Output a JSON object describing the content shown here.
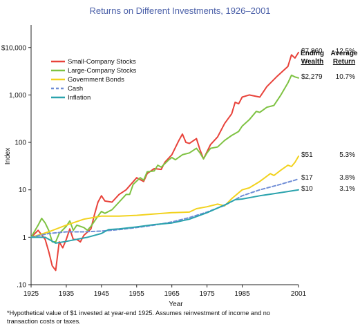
{
  "chart_data": {
    "type": "line",
    "title": "Returns on Different Investments, 1926–2001",
    "xlabel": "Year",
    "ylabel": "Index",
    "y_scale": "log",
    "ylim": [
      0.1,
      30000
    ],
    "xlim": [
      1925,
      2001
    ],
    "x_ticks": [
      "1925",
      "1935",
      "1945",
      "1955",
      "1965",
      "1975",
      "1985",
      "2001"
    ],
    "y_ticks": [
      ".10",
      "1",
      "10",
      "100",
      "1,000",
      "$10,000"
    ],
    "legend_position": "top-left",
    "series": [
      {
        "name": "Small-Company Stocks",
        "color": "#e8423a",
        "dash": "solid",
        "points": [
          [
            1925,
            1.0
          ],
          [
            1927,
            1.4
          ],
          [
            1929,
            0.9
          ],
          [
            1930,
            0.5
          ],
          [
            1931,
            0.25
          ],
          [
            1932,
            0.2
          ],
          [
            1933,
            0.8
          ],
          [
            1934,
            0.6
          ],
          [
            1935,
            0.9
          ],
          [
            1936,
            1.5
          ],
          [
            1937,
            0.9
          ],
          [
            1938,
            0.9
          ],
          [
            1939,
            0.8
          ],
          [
            1940,
            1.1
          ],
          [
            1942,
            1.5
          ],
          [
            1943,
            3.0
          ],
          [
            1944,
            5.5
          ],
          [
            1945,
            7.5
          ],
          [
            1946,
            5.8
          ],
          [
            1948,
            5.5
          ],
          [
            1950,
            8.0
          ],
          [
            1952,
            10
          ],
          [
            1955,
            18
          ],
          [
            1957,
            15
          ],
          [
            1958,
            22
          ],
          [
            1960,
            28
          ],
          [
            1962,
            27
          ],
          [
            1963,
            38
          ],
          [
            1965,
            55
          ],
          [
            1967,
            110
          ],
          [
            1968,
            150
          ],
          [
            1969,
            100
          ],
          [
            1970,
            95
          ],
          [
            1972,
            120
          ],
          [
            1973,
            70
          ],
          [
            1974,
            45
          ],
          [
            1976,
            90
          ],
          [
            1978,
            130
          ],
          [
            1980,
            250
          ],
          [
            1982,
            400
          ],
          [
            1983,
            700
          ],
          [
            1984,
            650
          ],
          [
            1985,
            900
          ],
          [
            1987,
            1000
          ],
          [
            1990,
            900
          ],
          [
            1992,
            1500
          ],
          [
            1995,
            2500
          ],
          [
            1998,
            4000
          ],
          [
            1999,
            7000
          ],
          [
            2000,
            6000
          ],
          [
            2001,
            7860
          ]
        ]
      },
      {
        "name": "Large-Company Stocks",
        "color": "#7ec242",
        "dash": "solid",
        "points": [
          [
            1925,
            1.0
          ],
          [
            1927,
            1.8
          ],
          [
            1928,
            2.5
          ],
          [
            1929,
            2.0
          ],
          [
            1930,
            1.4
          ],
          [
            1931,
            0.8
          ],
          [
            1932,
            0.8
          ],
          [
            1933,
            1.2
          ],
          [
            1935,
            1.7
          ],
          [
            1936,
            2.2
          ],
          [
            1937,
            1.4
          ],
          [
            1938,
            1.8
          ],
          [
            1940,
            1.6
          ],
          [
            1941,
            1.4
          ],
          [
            1942,
            1.7
          ],
          [
            1944,
            2.8
          ],
          [
            1945,
            3.5
          ],
          [
            1946,
            3.2
          ],
          [
            1948,
            3.8
          ],
          [
            1950,
            5.5
          ],
          [
            1952,
            8
          ],
          [
            1953,
            8
          ],
          [
            1954,
            13
          ],
          [
            1956,
            18
          ],
          [
            1957,
            16
          ],
          [
            1958,
            24
          ],
          [
            1960,
            25
          ],
          [
            1961,
            33
          ],
          [
            1962,
            30
          ],
          [
            1964,
            42
          ],
          [
            1965,
            48
          ],
          [
            1966,
            43
          ],
          [
            1968,
            55
          ],
          [
            1970,
            60
          ],
          [
            1972,
            75
          ],
          [
            1973,
            60
          ],
          [
            1974,
            45
          ],
          [
            1975,
            60
          ],
          [
            1976,
            75
          ],
          [
            1978,
            80
          ],
          [
            1980,
            110
          ],
          [
            1982,
            140
          ],
          [
            1984,
            170
          ],
          [
            1985,
            220
          ],
          [
            1987,
            300
          ],
          [
            1989,
            450
          ],
          [
            1990,
            430
          ],
          [
            1992,
            550
          ],
          [
            1994,
            600
          ],
          [
            1996,
            1000
          ],
          [
            1998,
            1800
          ],
          [
            1999,
            2600
          ],
          [
            2000,
            2400
          ],
          [
            2001,
            2279
          ]
        ]
      },
      {
        "name": "Government Bonds",
        "color": "#f2d21e",
        "dash": "solid",
        "points": [
          [
            1925,
            1.0
          ],
          [
            1930,
            1.3
          ],
          [
            1935,
            1.8
          ],
          [
            1940,
            2.4
          ],
          [
            1945,
            2.8
          ],
          [
            1950,
            2.8
          ],
          [
            1955,
            2.9
          ],
          [
            1960,
            3.1
          ],
          [
            1965,
            3.3
          ],
          [
            1970,
            3.4
          ],
          [
            1972,
            4.0
          ],
          [
            1975,
            4.4
          ],
          [
            1978,
            5.0
          ],
          [
            1980,
            4.6
          ],
          [
            1982,
            6.5
          ],
          [
            1985,
            10
          ],
          [
            1987,
            11
          ],
          [
            1990,
            15
          ],
          [
            1993,
            22
          ],
          [
            1994,
            20
          ],
          [
            1996,
            26
          ],
          [
            1998,
            33
          ],
          [
            1999,
            31
          ],
          [
            2000,
            38
          ],
          [
            2001,
            51
          ]
        ]
      },
      {
        "name": "Cash",
        "color": "#6f8dd6",
        "dash": "dashed",
        "points": [
          [
            1925,
            1.0
          ],
          [
            1930,
            1.2
          ],
          [
            1935,
            1.3
          ],
          [
            1940,
            1.3
          ],
          [
            1945,
            1.35
          ],
          [
            1950,
            1.45
          ],
          [
            1955,
            1.6
          ],
          [
            1960,
            1.8
          ],
          [
            1965,
            2.1
          ],
          [
            1970,
            2.6
          ],
          [
            1975,
            3.4
          ],
          [
            1980,
            4.7
          ],
          [
            1985,
            7.5
          ],
          [
            1990,
            10
          ],
          [
            1995,
            12.5
          ],
          [
            2000,
            16
          ],
          [
            2001,
            17
          ]
        ]
      },
      {
        "name": "Inflation",
        "color": "#2ba3ad",
        "dash": "solid",
        "points": [
          [
            1925,
            1.0
          ],
          [
            1929,
            1.0
          ],
          [
            1932,
            0.75
          ],
          [
            1935,
            0.82
          ],
          [
            1941,
            1.0
          ],
          [
            1945,
            1.2
          ],
          [
            1947,
            1.45
          ],
          [
            1950,
            1.5
          ],
          [
            1955,
            1.65
          ],
          [
            1960,
            1.85
          ],
          [
            1965,
            2.0
          ],
          [
            1970,
            2.4
          ],
          [
            1975,
            3.3
          ],
          [
            1980,
            4.8
          ],
          [
            1983,
            6.2
          ],
          [
            1985,
            6.4
          ],
          [
            1990,
            7.5
          ],
          [
            1995,
            8.5
          ],
          [
            2001,
            10
          ]
        ]
      }
    ],
    "table": {
      "headers": [
        [
          "Ending",
          "Wealth"
        ],
        [
          "Average",
          "Return"
        ]
      ],
      "rows": [
        {
          "y_value": 7860,
          "wealth": "$7,860",
          "return": "12.5%"
        },
        {
          "y_value": 2279,
          "wealth": "$2,279",
          "return": "10.7%"
        },
        {
          "y_value": 51,
          "wealth": "$51",
          "return": "5.3%"
        },
        {
          "y_value": 17,
          "wealth": "$17",
          "return": "3.8%"
        },
        {
          "y_value": 10,
          "wealth": "$10",
          "return": "3.1%"
        }
      ]
    },
    "footnote": "*Hypothetical value of $1 invested at year-end 1925. Assumes reinvestment of income and no transaction costs or taxes."
  }
}
